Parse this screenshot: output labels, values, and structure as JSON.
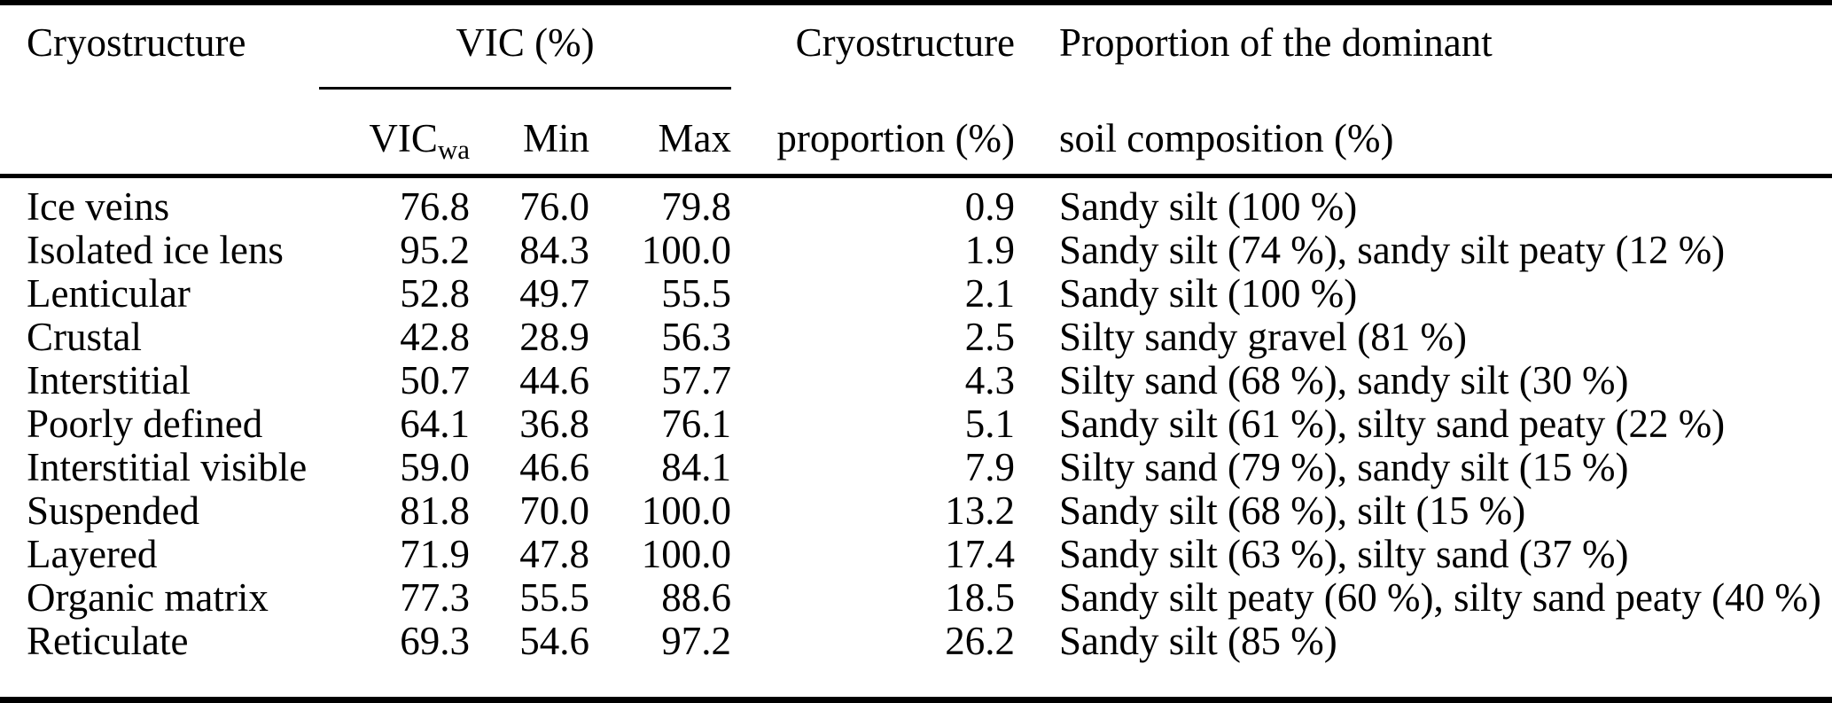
{
  "page": {
    "background_color": "#ffffff",
    "text_color": "#000000",
    "rule_color": "#000000"
  },
  "table": {
    "header": {
      "cryostructure": "Cryostructure",
      "vic_group": "VIC (%)",
      "vic_wa_main": "VIC",
      "vic_wa_sub": "wa",
      "min": "Min",
      "max": "Max",
      "proportion_line1": "Cryostructure",
      "proportion_line2": "proportion (%)",
      "soil_line1": "Proportion of the dominant",
      "soil_line2": "soil composition (%)"
    },
    "rows": [
      {
        "cryostructure": "Ice veins",
        "vic_wa": "76.8",
        "min": "76.0",
        "max": "79.8",
        "proportion": "0.9",
        "soil": "Sandy silt (100 %)"
      },
      {
        "cryostructure": "Isolated ice lens",
        "vic_wa": "95.2",
        "min": "84.3",
        "max": "100.0",
        "proportion": "1.9",
        "soil": "Sandy silt (74 %), sandy silt peaty (12 %)"
      },
      {
        "cryostructure": "Lenticular",
        "vic_wa": "52.8",
        "min": "49.7",
        "max": "55.5",
        "proportion": "2.1",
        "soil": "Sandy silt (100 %)"
      },
      {
        "cryostructure": "Crustal",
        "vic_wa": "42.8",
        "min": "28.9",
        "max": "56.3",
        "proportion": "2.5",
        "soil": "Silty sandy gravel (81 %)"
      },
      {
        "cryostructure": "Interstitial",
        "vic_wa": "50.7",
        "min": "44.6",
        "max": "57.7",
        "proportion": "4.3",
        "soil": "Silty sand (68 %), sandy silt (30 %)"
      },
      {
        "cryostructure": "Poorly defined",
        "vic_wa": "64.1",
        "min": "36.8",
        "max": "76.1",
        "proportion": "5.1",
        "soil": "Sandy silt (61 %), silty sand peaty (22 %)"
      },
      {
        "cryostructure": "Interstitial visible",
        "vic_wa": "59.0",
        "min": "46.6",
        "max": "84.1",
        "proportion": "7.9",
        "soil": "Silty sand (79 %), sandy silt (15 %)"
      },
      {
        "cryostructure": "Suspended",
        "vic_wa": "81.8",
        "min": "70.0",
        "max": "100.0",
        "proportion": "13.2",
        "soil": "Sandy silt (68 %), silt (15 %)"
      },
      {
        "cryostructure": "Layered",
        "vic_wa": "71.9",
        "min": "47.8",
        "max": "100.0",
        "proportion": "17.4",
        "soil": "Sandy silt (63 %), silty sand (37 %)"
      },
      {
        "cryostructure": "Organic matrix",
        "vic_wa": "77.3",
        "min": "55.5",
        "max": "88.6",
        "proportion": "18.5",
        "soil": "Sandy silt peaty (60 %), silty sand peaty (40 %)"
      },
      {
        "cryostructure": "Reticulate",
        "vic_wa": "69.3",
        "min": "54.6",
        "max": "97.2",
        "proportion": "26.2",
        "soil": "Sandy silt (85 %)"
      }
    ]
  }
}
